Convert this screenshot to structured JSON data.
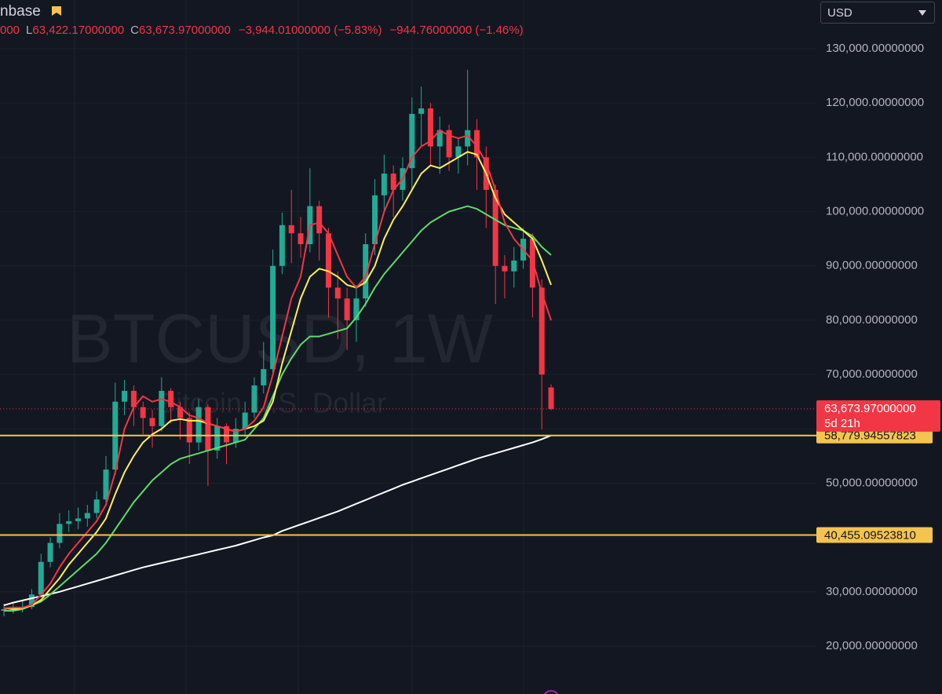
{
  "header": {
    "source": "nbase",
    "open_fragment": "000",
    "low_key": "L",
    "low": "63,422.17000000",
    "close_key": "C",
    "close": "63,673.97000000",
    "change": "−3,944.01000000 (−5.83%)",
    "change2": "−944.76000000 (−1.46%)"
  },
  "currency": "USD",
  "chart_data": {
    "type": "candlestick",
    "title": "BTCUSD, 1W",
    "subtitle": "Bitcoin U.S. Dollar",
    "up_color": "#22ab94",
    "down_color": "#f23645",
    "opens": [
      26500,
      26800,
      27000,
      27200,
      29500,
      35500,
      39000,
      42500,
      43000,
      43500,
      44500,
      47000,
      52500,
      65000,
      67000,
      64000,
      62000,
      60500,
      67000,
      64000,
      62000,
      57500,
      64000,
      56000,
      60500,
      57500,
      60000,
      63000,
      68000,
      71000,
      90000,
      97500,
      96000,
      94000,
      101000,
      96000,
      86000,
      84000,
      80000,
      84000,
      94000,
      103000,
      107000,
      104000,
      108000,
      118000,
      119000,
      112000,
      115000,
      110000,
      112000,
      115000,
      110000,
      104000,
      90000,
      89000,
      91000,
      95000,
      86000,
      67617.98
    ],
    "highs": [
      27800,
      28000,
      28500,
      30500,
      37000,
      40000,
      44500,
      45000,
      45500,
      46000,
      48500,
      55000,
      68500,
      69000,
      68000,
      65000,
      63500,
      69500,
      67500,
      65000,
      63000,
      65500,
      64500,
      62000,
      61000,
      62000,
      65000,
      69500,
      76000,
      93000,
      99800,
      104000,
      99000,
      108000,
      102000,
      97000,
      89000,
      86000,
      86500,
      96000,
      106000,
      110500,
      108500,
      110000,
      121000,
      123000,
      120000,
      117500,
      116000,
      113500,
      126100,
      117000,
      112000,
      105000,
      92000,
      93500,
      97000,
      96000,
      87500,
      68200
    ],
    "lows": [
      25500,
      26000,
      26200,
      26800,
      29000,
      34500,
      38000,
      41000,
      41500,
      42000,
      43500,
      46500,
      51500,
      62500,
      60500,
      59000,
      56500,
      59500,
      61000,
      58000,
      53500,
      56000,
      49500,
      54500,
      53500,
      56500,
      58500,
      62000,
      66500,
      70000,
      88500,
      90500,
      91500,
      92500,
      91000,
      80500,
      76500,
      74500,
      76000,
      82500,
      92000,
      100000,
      99000,
      102000,
      104000,
      112000,
      108500,
      107000,
      107500,
      107000,
      108500,
      104000,
      97000,
      83000,
      84000,
      86000,
      89500,
      80500,
      59900,
      63422.17
    ],
    "closes": [
      26800,
      27000,
      27200,
      29500,
      35500,
      39000,
      42500,
      43000,
      43500,
      44500,
      47000,
      52500,
      65000,
      67000,
      64000,
      62000,
      60500,
      67000,
      64000,
      62000,
      57500,
      64000,
      56000,
      60500,
      57500,
      60000,
      63000,
      68000,
      71000,
      90000,
      97500,
      96000,
      94000,
      101000,
      96000,
      86000,
      84000,
      80000,
      84000,
      94000,
      103000,
      107000,
      104000,
      108000,
      118000,
      119000,
      112000,
      115000,
      110000,
      112000,
      115000,
      110000,
      104000,
      90000,
      89000,
      91000,
      95000,
      86000,
      70000,
      63673.97
    ],
    "moving_averages": [
      {
        "color": "#ffffff",
        "values": [
          27500,
          28000,
          28400,
          28800,
          29200,
          29600,
          30000,
          30500,
          31000,
          31500,
          32000,
          32500,
          33000,
          33500,
          34000,
          34500,
          34900,
          35300,
          35700,
          36100,
          36500,
          36900,
          37300,
          37700,
          38100,
          38500,
          39000,
          39500,
          40000,
          40400,
          41200,
          41800,
          42400,
          43000,
          43600,
          44200,
          44800,
          45500,
          46200,
          46900,
          47600,
          48300,
          49000,
          49700,
          50300,
          50900,
          51500,
          52100,
          52700,
          53300,
          53900,
          54500,
          55000,
          55500,
          56000,
          56500,
          57000,
          57500,
          58100,
          58780
        ]
      },
      {
        "color": "#5ddc6b",
        "values": [
          26500,
          26500,
          26800,
          27500,
          28200,
          29500,
          31000,
          32500,
          34000,
          35500,
          37000,
          39000,
          41500,
          44000,
          46500,
          48500,
          50500,
          52000,
          53500,
          54500,
          55000,
          55500,
          56000,
          56500,
          57000,
          57500,
          58000,
          60000,
          62000,
          66000,
          70000,
          73000,
          75500,
          77000,
          77000,
          77500,
          78000,
          78500,
          80500,
          83000,
          86000,
          88500,
          90500,
          92500,
          94500,
          96500,
          98000,
          99000,
          100000,
          100500,
          101000,
          100500,
          99500,
          98500,
          97500,
          97000,
          96500,
          95500,
          93500,
          92000
        ]
      },
      {
        "color": "#ffee58",
        "values": [
          27000,
          26800,
          27000,
          27500,
          28500,
          30500,
          32500,
          35000,
          37000,
          39000,
          41000,
          43500,
          48000,
          52000,
          55000,
          57500,
          59000,
          60000,
          61500,
          61800,
          61500,
          61500,
          61000,
          60500,
          60000,
          59500,
          60000,
          60500,
          61500,
          65000,
          72000,
          78000,
          84000,
          88000,
          89500,
          89000,
          88000,
          86500,
          86000,
          87000,
          90000,
          95000,
          98500,
          101000,
          104000,
          107000,
          108500,
          108000,
          109000,
          110000,
          111000,
          110500,
          107000,
          102500,
          99500,
          98000,
          96500,
          95000,
          91000,
          86500
        ]
      },
      {
        "color": "#f23645",
        "values": [
          27000,
          27100,
          27100,
          27600,
          29500,
          31500,
          34500,
          37000,
          39000,
          41000,
          43000,
          46000,
          52000,
          60000,
          64000,
          66000,
          65000,
          65500,
          65000,
          64000,
          62500,
          62000,
          61000,
          60500,
          60000,
          59500,
          60000,
          61500,
          64000,
          70000,
          77000,
          84000,
          88000,
          97500,
          98000,
          96000,
          92000,
          88000,
          86000,
          88000,
          94000,
          100000,
          104000,
          106000,
          110000,
          112000,
          113000,
          115000,
          114000,
          113500,
          114000,
          112000,
          109000,
          104000,
          98000,
          95000,
          93000,
          91000,
          85000,
          80000
        ]
      }
    ],
    "ylim": [
      11180,
      138960
    ],
    "yticks": [
      {
        "value": 20000,
        "label": "20,000.00000000"
      },
      {
        "value": 30000,
        "label": "30,000.00000000"
      },
      {
        "value": 40000,
        "label": "40,000.00000000"
      },
      {
        "value": 50000,
        "label": "50,000.00000000"
      },
      {
        "value": 60000,
        "label": "60,000.00000000"
      },
      {
        "value": 70000,
        "label": "70,000.00000000"
      },
      {
        "value": 80000,
        "label": "80,000.00000000"
      },
      {
        "value": 90000,
        "label": "90,000.00000000"
      },
      {
        "value": 100000,
        "label": "100,000.00000000"
      },
      {
        "value": 110000,
        "label": "110,000.00000000"
      },
      {
        "value": 120000,
        "label": "120,000.00000000"
      },
      {
        "value": 130000,
        "label": "130,000.00000000"
      }
    ],
    "grid": true,
    "last_price": {
      "value": 63673.97,
      "label": "63,673.97000000",
      "countdown": "5d 21h",
      "color": "#f23645"
    },
    "levels": [
      {
        "value": 58779.94557823,
        "label": "58,779.94557823",
        "color": "#f5c44e"
      },
      {
        "value": 40455.0952381,
        "label": "40,455.09523810",
        "color": "#f5c44e"
      }
    ]
  }
}
